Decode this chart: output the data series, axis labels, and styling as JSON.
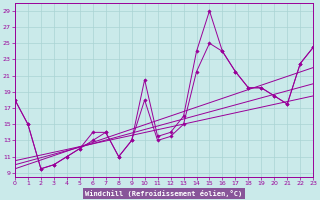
{
  "xlabel": "Windchill (Refroidissement éolien,°C)",
  "background_color": "#caeaea",
  "plot_bg_color": "#caeaea",
  "label_bg_color": "#9966aa",
  "line_color": "#990099",
  "grid_color": "#aad4d4",
  "xlim": [
    0,
    23
  ],
  "ylim": [
    8.5,
    30
  ],
  "yticks": [
    9,
    11,
    13,
    15,
    17,
    19,
    21,
    23,
    25,
    27,
    29
  ],
  "xticks": [
    0,
    1,
    2,
    3,
    4,
    5,
    6,
    7,
    8,
    9,
    10,
    11,
    12,
    13,
    14,
    15,
    16,
    17,
    18,
    19,
    20,
    21,
    22,
    23
  ],
  "series": [
    {
      "x": [
        0,
        1,
        2,
        3,
        4,
        5,
        6,
        7,
        8,
        9,
        10,
        11,
        12,
        13,
        14,
        15,
        16,
        17,
        18,
        19,
        20,
        21,
        22,
        23
      ],
      "y": [
        18,
        15,
        9.5,
        10,
        11,
        12,
        14,
        14,
        11,
        13,
        20.5,
        13.5,
        14,
        16,
        24,
        29,
        24,
        21.5,
        19.5,
        19.5,
        18.5,
        17.5,
        22.5,
        24.5
      ],
      "marker": true
    },
    {
      "x": [
        0,
        1,
        2,
        3,
        4,
        5,
        6,
        7,
        8,
        9,
        10,
        11,
        12,
        13,
        14,
        15,
        16,
        17,
        18,
        19,
        20,
        21,
        22,
        23
      ],
      "y": [
        18,
        15,
        9.5,
        10,
        11,
        12,
        13,
        14,
        11,
        13,
        18,
        13,
        13.5,
        15,
        21.5,
        25,
        24,
        21.5,
        19.5,
        19.5,
        18.5,
        17.5,
        22.5,
        24.5
      ],
      "marker": true
    },
    {
      "x": [
        0,
        23
      ],
      "y": [
        9.5,
        22
      ],
      "marker": false
    },
    {
      "x": [
        0,
        23
      ],
      "y": [
        10,
        20
      ],
      "marker": false
    },
    {
      "x": [
        0,
        23
      ],
      "y": [
        10.5,
        18.5
      ],
      "marker": false
    }
  ]
}
